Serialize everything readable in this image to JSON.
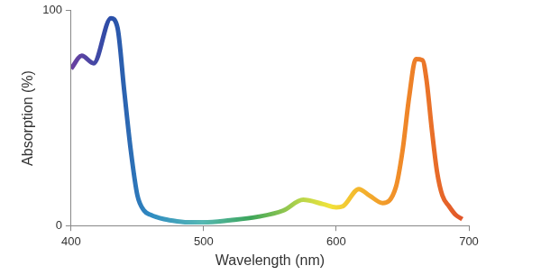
{
  "chart_data": {
    "type": "line",
    "x_label": "Wavelength (nm)",
    "y_label": "Absorption (%)",
    "x": [
      400,
      408,
      417,
      430,
      435,
      440,
      445,
      450,
      455,
      460,
      470,
      480,
      490,
      500,
      520,
      540,
      560,
      575,
      590,
      600,
      605,
      617,
      625,
      635,
      645,
      650,
      655,
      660,
      665,
      668,
      672,
      676,
      680,
      685,
      690,
      695
    ],
    "values": [
      73,
      79,
      75.5,
      96.5,
      92,
      63,
      35,
      14,
      7,
      5,
      3,
      2,
      1.5,
      1.5,
      2.5,
      4,
      7,
      12,
      10,
      8.5,
      9,
      17,
      14,
      10.5,
      18,
      35,
      60,
      77.5,
      77,
      68,
      45,
      25,
      14,
      9,
      5,
      3
    ],
    "xlim": [
      400,
      700
    ],
    "xticks": [
      400,
      500,
      600,
      700
    ],
    "ylim": [
      0,
      100
    ],
    "yticks": [
      0,
      100
    ],
    "grid": false
  }
}
